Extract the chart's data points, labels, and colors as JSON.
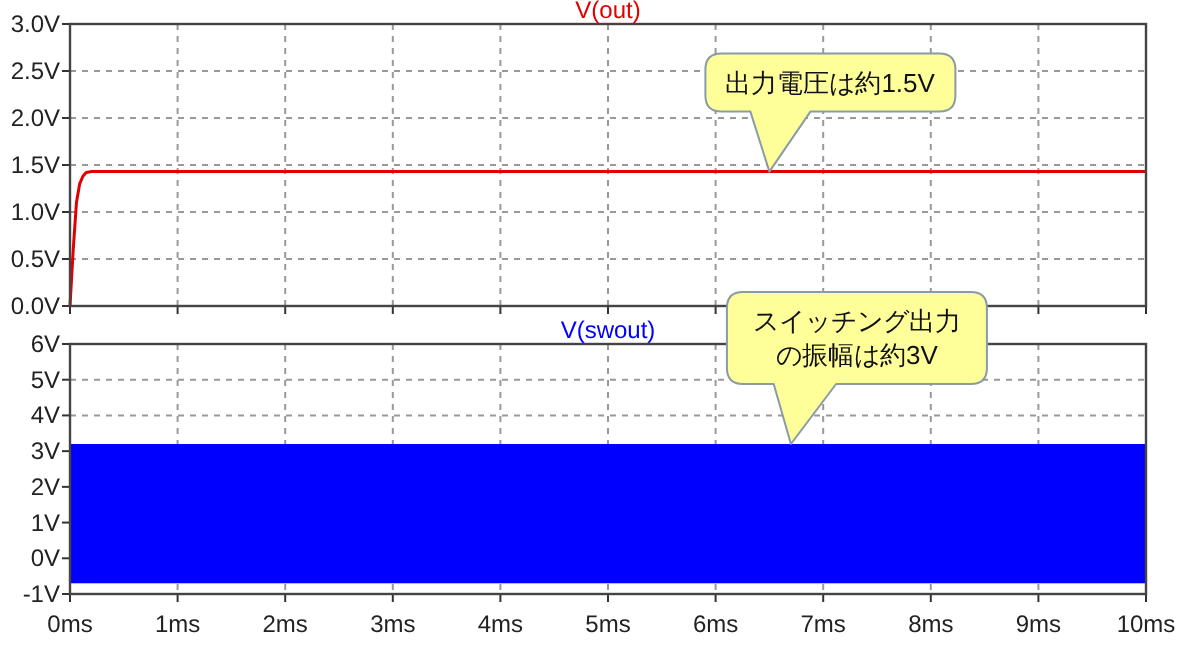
{
  "chart_data": [
    {
      "type": "line",
      "xlim": [
        0,
        10
      ],
      "xticks": [
        {
          "value": 0,
          "label": null
        },
        {
          "value": 1,
          "label": null
        },
        {
          "value": 2,
          "label": null
        },
        {
          "value": 3,
          "label": null
        },
        {
          "value": 4,
          "label": null
        },
        {
          "value": 5,
          "label": null
        },
        {
          "value": 6,
          "label": null
        },
        {
          "value": 7,
          "label": null
        },
        {
          "value": 8,
          "label": null
        },
        {
          "value": 9,
          "label": null
        },
        {
          "value": 10,
          "label": null
        }
      ],
      "ylim": [
        0,
        3
      ],
      "yticks": [
        {
          "value": 0,
          "label": "0.0V"
        },
        {
          "value": 0.5,
          "label": "0.5V"
        },
        {
          "value": 1,
          "label": "1.0V"
        },
        {
          "value": 1.5,
          "label": "1.5V"
        },
        {
          "value": 2,
          "label": "2.0V"
        },
        {
          "value": 2.5,
          "label": "2.5V"
        },
        {
          "value": 3,
          "label": "3.0V"
        }
      ],
      "grid": true,
      "tick_labels": "y",
      "series": [
        {
          "name": "V(out)",
          "color": "#e00000",
          "x": [
            0,
            0.03,
            0.06,
            0.09,
            0.12,
            0.15,
            0.2,
            10
          ],
          "values": [
            0,
            0.6,
            1.1,
            1.3,
            1.38,
            1.42,
            1.43,
            1.43
          ]
        }
      ],
      "annotations": [
        {
          "text": "出力電圧は約1.5V",
          "x": 6.5,
          "y": 1.43
        }
      ]
    },
    {
      "type": "line",
      "xlim": [
        0,
        10
      ],
      "xticks": [
        {
          "value": 0,
          "label": "0ms"
        },
        {
          "value": 1,
          "label": "1ms"
        },
        {
          "value": 2,
          "label": "2ms"
        },
        {
          "value": 3,
          "label": "3ms"
        },
        {
          "value": 4,
          "label": "4ms"
        },
        {
          "value": 5,
          "label": "5ms"
        },
        {
          "value": 6,
          "label": "6ms"
        },
        {
          "value": 7,
          "label": "7ms"
        },
        {
          "value": 8,
          "label": "8ms"
        },
        {
          "value": 9,
          "label": "9ms"
        },
        {
          "value": 10,
          "label": "10ms"
        }
      ],
      "ylim": [
        -1,
        6
      ],
      "yticks": [
        {
          "value": -1,
          "label": "-1V"
        },
        {
          "value": 0,
          "label": "0V"
        },
        {
          "value": 1,
          "label": "1V"
        },
        {
          "value": 2,
          "label": "2V"
        },
        {
          "value": 3,
          "label": "3V"
        },
        {
          "value": 4,
          "label": "4V"
        },
        {
          "value": 5,
          "label": "5V"
        },
        {
          "value": 6,
          "label": "6V"
        }
      ],
      "grid": true,
      "bands": [
        {
          "axis": "y",
          "from": -0.7,
          "to": 3.2,
          "label": "V(swout)",
          "color": "#0000ff"
        }
      ],
      "annotations": [
        {
          "text": "スイッチング出力の振幅は約3V",
          "x": 6.7,
          "y": 3.2
        }
      ]
    }
  ]
}
